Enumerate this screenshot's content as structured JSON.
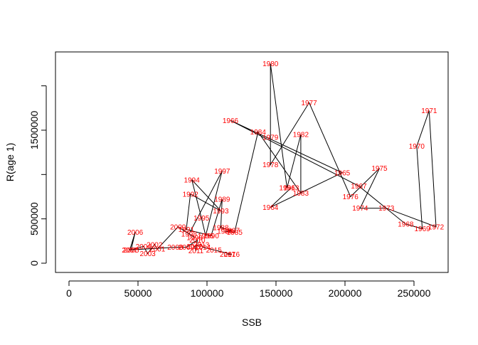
{
  "chart_data": {
    "type": "line",
    "title": "",
    "xlabel": "SSB",
    "ylabel": "R(age 1)",
    "xlim": [
      0,
      270000
    ],
    "ylim": [
      0,
      2150000
    ],
    "x_ticks": [
      0,
      50000,
      100000,
      150000,
      200000,
      250000
    ],
    "x_tick_labels": [
      "0",
      "50000",
      "100000",
      "150000",
      "200000",
      "250000"
    ],
    "y_ticks": [
      0,
      500000,
      1500000
    ],
    "y_tick_labels": [
      "0",
      "500000",
      "1500000"
    ],
    "grid": false,
    "legend": "none",
    "line_color": "#000000",
    "label_color": "#ff0000",
    "points": [
      {
        "year": "1963",
        "x": 161000,
        "y": 850000
      },
      {
        "year": "1964",
        "x": 146000,
        "y": 630000
      },
      {
        "year": "1965",
        "x": 198000,
        "y": 1020000
      },
      {
        "year": "1966",
        "x": 117000,
        "y": 1610000
      },
      {
        "year": "1967",
        "x": 210000,
        "y": 870000
      },
      {
        "year": "1968",
        "x": 244000,
        "y": 440000
      },
      {
        "year": "1969",
        "x": 256000,
        "y": 390000
      },
      {
        "year": "1970",
        "x": 252000,
        "y": 1320000
      },
      {
        "year": "1971",
        "x": 261000,
        "y": 1720000
      },
      {
        "year": "1972",
        "x": 266000,
        "y": 410000
      },
      {
        "year": "1973",
        "x": 230000,
        "y": 620000
      },
      {
        "year": "1974",
        "x": 211000,
        "y": 620000
      },
      {
        "year": "1975",
        "x": 225000,
        "y": 1070000
      },
      {
        "year": "1976",
        "x": 204000,
        "y": 750000
      },
      {
        "year": "1977",
        "x": 174000,
        "y": 1810000
      },
      {
        "year": "1978",
        "x": 146000,
        "y": 1110000
      },
      {
        "year": "1979",
        "x": 146000,
        "y": 1420000
      },
      {
        "year": "1980",
        "x": 146000,
        "y": 2250000
      },
      {
        "year": "1981",
        "x": 158000,
        "y": 850000
      },
      {
        "year": "1982",
        "x": 168000,
        "y": 1450000
      },
      {
        "year": "1983",
        "x": 168000,
        "y": 790000
      },
      {
        "year": "1984",
        "x": 137000,
        "y": 1480000
      },
      {
        "year": "1985",
        "x": 120000,
        "y": 350000
      },
      {
        "year": "1986",
        "x": 113000,
        "y": 360000
      },
      {
        "year": "1987",
        "x": 118000,
        "y": 370000
      },
      {
        "year": "1988",
        "x": 110000,
        "y": 400000
      },
      {
        "year": "1989",
        "x": 111000,
        "y": 720000
      },
      {
        "year": "1990",
        "x": 103000,
        "y": 310000
      },
      {
        "year": "1991",
        "x": 85000,
        "y": 380000
      },
      {
        "year": "1992",
        "x": 88000,
        "y": 780000
      },
      {
        "year": "1993",
        "x": 110000,
        "y": 590000
      },
      {
        "year": "1994",
        "x": 89000,
        "y": 940000
      },
      {
        "year": "1995",
        "x": 96000,
        "y": 510000
      },
      {
        "year": "1996",
        "x": 99000,
        "y": 310000
      },
      {
        "year": "1997",
        "x": 111000,
        "y": 1040000
      },
      {
        "year": "1998",
        "x": 87000,
        "y": 330000
      },
      {
        "year": "1999",
        "x": 91000,
        "y": 290000
      },
      {
        "year": "2000",
        "x": 79000,
        "y": 410000
      },
      {
        "year": "2001",
        "x": 64000,
        "y": 160000
      },
      {
        "year": "2002",
        "x": 62000,
        "y": 210000
      },
      {
        "year": "2003",
        "x": 57000,
        "y": 110000
      },
      {
        "year": "2004",
        "x": 54000,
        "y": 190000
      },
      {
        "year": "2005",
        "x": 45000,
        "y": 150000
      },
      {
        "year": "2006",
        "x": 48000,
        "y": 350000
      },
      {
        "year": "2007",
        "x": 44000,
        "y": 150000
      },
      {
        "year": "2008",
        "x": 77000,
        "y": 180000
      },
      {
        "year": "2009",
        "x": 85000,
        "y": 180000
      },
      {
        "year": "2010",
        "x": 93000,
        "y": 260000
      },
      {
        "year": "2011",
        "x": 92000,
        "y": 140000
      },
      {
        "year": "2012",
        "x": 91000,
        "y": 190000
      },
      {
        "year": "2013",
        "x": 96000,
        "y": 210000
      },
      {
        "year": "2014",
        "x": 97000,
        "y": 180000
      },
      {
        "year": "2015",
        "x": 105000,
        "y": 150000
      },
      {
        "year": "2016",
        "x": 118000,
        "y": 100000
      },
      {
        "year": "2017",
        "x": 115000,
        "y": 100000
      }
    ]
  }
}
